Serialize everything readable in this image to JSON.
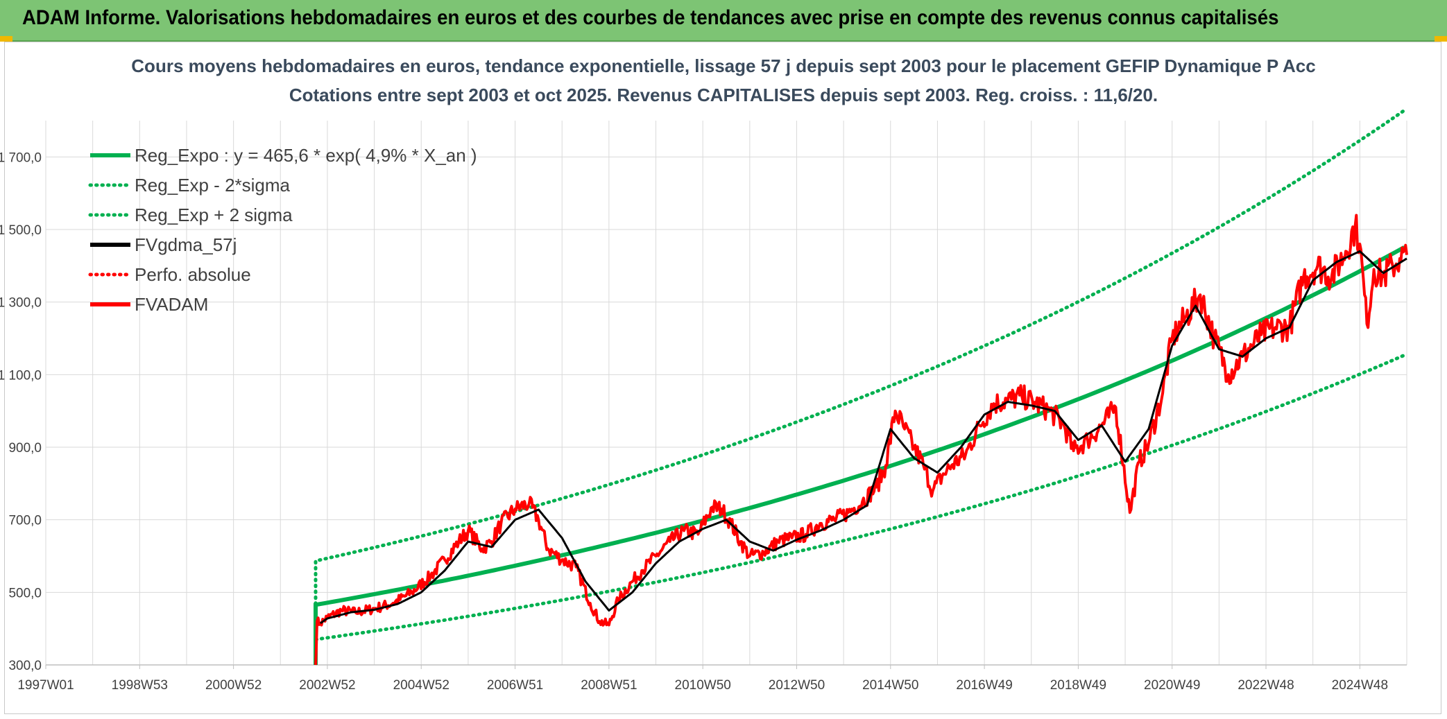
{
  "header": {
    "title": "ADAM Informe. Valorisations hebdomadaires en euros et des courbes de tendances avec prise en compte des revenus connus capitalisés"
  },
  "colors": {
    "banner": "#7dc474",
    "green": "#00b050",
    "red": "#ff0000",
    "black": "#000000",
    "grid": "#d9d9d9"
  },
  "chart_data": {
    "type": "line",
    "title": "Cours moyens hebdomadaires en euros, tendance exponentielle, lissage 57 j depuis sept 2003 pour le placement GEFIP Dynamique P Acc",
    "subtitle": "Cotations entre sept 2003 et oct 2025. Revenus CAPITALISES depuis sept 2003. Reg. croiss. : 11,6/20.",
    "xlabel": "",
    "ylabel": "",
    "xlim": [
      1997.0,
      2026.0
    ],
    "ylim": [
      300,
      1800
    ],
    "yticks": [
      "300,0",
      "500,0",
      "700,0",
      "900,0",
      "1 100,0",
      "1 300,0",
      "1 500,0",
      "1 700,0"
    ],
    "ytick_values": [
      300,
      500,
      700,
      900,
      1100,
      1300,
      1500,
      1700
    ],
    "xticks": [
      "1997W01",
      "1998W53",
      "2000W52",
      "2002W52",
      "2004W52",
      "2006W51",
      "2008W51",
      "2010W50",
      "2012W50",
      "2014W50",
      "2016W49",
      "2018W49",
      "2020W49",
      "2022W48",
      "2024W48"
    ],
    "xtick_values": [
      1997.0,
      1999.0,
      2001.0,
      2003.0,
      2005.0,
      2007.0,
      2009.0,
      2011.0,
      2013.0,
      2015.0,
      2017.0,
      2019.0,
      2021.0,
      2023.0,
      2025.0
    ],
    "legend_position": "top-left",
    "legend": [
      {
        "label": "Reg_Expo : y = 465,6 * exp( 4,9% *  X_an )",
        "color": "#00b050",
        "style": "solid"
      },
      {
        "label": "Reg_Exp - 2*sigma",
        "color": "#00b050",
        "style": "dotted"
      },
      {
        "label": "Reg_Exp + 2 sigma",
        "color": "#00b050",
        "style": "dotted"
      },
      {
        "label": "FVgdma_57j",
        "color": "#000000",
        "style": "solid"
      },
      {
        "label": "Perfo. absolue",
        "color": "#ff0000",
        "style": "dotted"
      },
      {
        "label": "FVADAM",
        "color": "#ff0000",
        "style": "solid"
      }
    ],
    "regression": {
      "start": 2002.75,
      "end": 2026.0,
      "base": 465.6,
      "rate": 0.049,
      "upper_factor": 1.26,
      "lower_factor": 0.795,
      "baseline_at_start": 300
    },
    "series": [
      {
        "name": "FVADAM",
        "x": [
          2002.75,
          2002.78,
          2002.85,
          2003.0,
          2003.3,
          2003.6,
          2004.0,
          2004.4,
          2004.8,
          2005.2,
          2005.5,
          2005.8,
          2006.0,
          2006.3,
          2006.5,
          2006.7,
          2007.0,
          2007.3,
          2007.5,
          2007.7,
          2008.0,
          2008.3,
          2008.6,
          2008.8,
          2009.0,
          2009.2,
          2009.5,
          2009.7,
          2010.0,
          2010.3,
          2010.6,
          2010.9,
          2011.2,
          2011.4,
          2011.6,
          2011.8,
          2012.0,
          2012.3,
          2012.6,
          2012.9,
          2013.2,
          2013.5,
          2013.8,
          2014.1,
          2014.4,
          2014.7,
          2014.9,
          2015.1,
          2015.3,
          2015.5,
          2015.7,
          2015.9,
          2016.1,
          2016.3,
          2016.6,
          2016.9,
          2017.2,
          2017.5,
          2017.8,
          2018.1,
          2018.4,
          2018.7,
          2018.9,
          2019.2,
          2019.5,
          2019.8,
          2020.1,
          2020.3,
          2020.5,
          2020.8,
          2021.0,
          2021.3,
          2021.6,
          2021.9,
          2022.2,
          2022.5,
          2022.7,
          2022.9,
          2023.2,
          2023.5,
          2023.8,
          2024.1,
          2024.4,
          2024.7,
          2024.9,
          2025.0,
          2025.15,
          2025.3,
          2025.5,
          2025.7,
          2025.85,
          2026.0
        ],
        "y": [
          300,
          420,
          415,
          430,
          450,
          445,
          455,
          470,
          500,
          545,
          590,
          640,
          670,
          620,
          640,
          690,
          730,
          745,
          700,
          620,
          590,
          570,
          470,
          420,
          410,
          480,
          530,
          560,
          600,
          640,
          670,
          660,
          735,
          730,
          690,
          640,
          600,
          610,
          640,
          650,
          660,
          690,
          700,
          720,
          750,
          790,
          850,
          1000,
          950,
          900,
          850,
          780,
          820,
          850,
          880,
          960,
          1020,
          1030,
          1040,
          1020,
          1000,
          960,
          890,
          920,
          960,
          1010,
          720,
          860,
          910,
          1050,
          1200,
          1260,
          1320,
          1200,
          1100,
          1150,
          1180,
          1210,
          1230,
          1230,
          1370,
          1400,
          1370,
          1440,
          1510,
          1460,
          1240,
          1390,
          1370,
          1400,
          1420,
          1430
        ]
      },
      {
        "name": "FVgdma_57j",
        "x": [
          2002.85,
          2003.0,
          2003.5,
          2004.0,
          2004.5,
          2005.0,
          2005.5,
          2006.0,
          2006.5,
          2007.0,
          2007.5,
          2008.0,
          2008.5,
          2009.0,
          2009.5,
          2010.0,
          2010.5,
          2011.0,
          2011.5,
          2012.0,
          2012.5,
          2013.0,
          2013.5,
          2014.0,
          2014.5,
          2015.0,
          2015.5,
          2016.0,
          2016.5,
          2017.0,
          2017.5,
          2018.0,
          2018.5,
          2019.0,
          2019.5,
          2020.0,
          2020.5,
          2021.0,
          2021.5,
          2022.0,
          2022.5,
          2023.0,
          2023.5,
          2024.0,
          2024.5,
          2025.0,
          2025.5,
          2026.0
        ],
        "y": [
          415,
          428,
          445,
          452,
          468,
          500,
          560,
          640,
          625,
          700,
          728,
          650,
          530,
          450,
          500,
          580,
          640,
          675,
          700,
          640,
          615,
          645,
          670,
          700,
          740,
          950,
          870,
          830,
          900,
          990,
          1025,
          1015,
          1000,
          920,
          960,
          860,
          950,
          1180,
          1290,
          1170,
          1150,
          1200,
          1230,
          1360,
          1410,
          1440,
          1380,
          1420
        ]
      }
    ]
  }
}
